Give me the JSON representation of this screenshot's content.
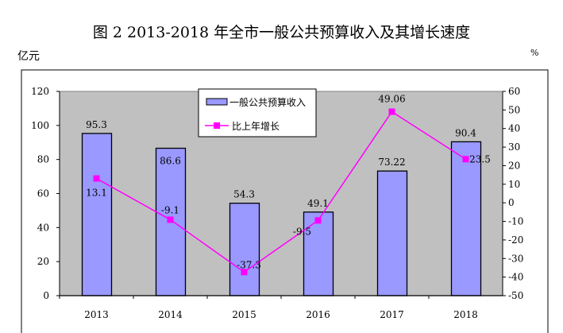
{
  "chart_data": {
    "type": "bar+line",
    "title": "图 2 2013-2018 年全市一般公共预算收入及其增长速度",
    "ylabel_left": "亿元",
    "ylabel_right": "%",
    "categories": [
      "2013",
      "2014",
      "2015",
      "2016",
      "2017",
      "2018"
    ],
    "series": [
      {
        "name": "一般公共预算收入",
        "type": "bar",
        "axis": "left",
        "values": [
          95.3,
          86.6,
          54.3,
          49.1,
          73.22,
          90.4
        ],
        "labels": [
          "95.3",
          "86.6",
          "54.3",
          "49.1",
          "73.22",
          "90.4"
        ],
        "color": "#9999ff"
      },
      {
        "name": "比上年增长",
        "type": "line",
        "axis": "right",
        "values": [
          13.1,
          -9.1,
          -37.3,
          -9.5,
          49.06,
          23.5
        ],
        "labels": [
          "13.1",
          "-9.1",
          "-37.3",
          "-9.5",
          "49.06",
          "23.5"
        ],
        "color": "#ff00ff"
      }
    ],
    "ylim_left": [
      0,
      120
    ],
    "yticks_left": [
      "0",
      "20",
      "40",
      "60",
      "80",
      "100",
      "120"
    ],
    "ylim_right": [
      -50,
      60
    ],
    "yticks_right": [
      "-50",
      "-40",
      "-30",
      "-20",
      "-10",
      "0",
      "10",
      "20",
      "30",
      "40",
      "50",
      "60"
    ],
    "plot_background": "#c0c0c0",
    "legend": "top-center"
  }
}
